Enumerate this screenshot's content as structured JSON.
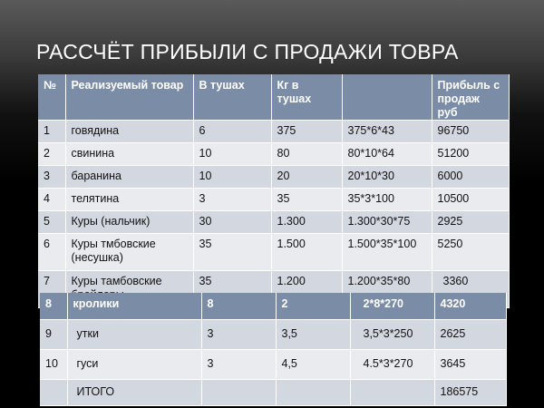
{
  "title": "РАССЧЁТ ПРИБЫЛИ С ПРОДАЖИ ТОВРА",
  "table1": {
    "headers": [
      "№",
      "Реализуемый товар",
      "В тушах",
      "Кг в тушах",
      "",
      "Прибыль с продаж руб"
    ],
    "rows": [
      [
        "1",
        "говядина",
        "6",
        "375",
        "375*6*43",
        "96750"
      ],
      [
        "2",
        "свинина",
        "10",
        "80",
        "80*10*64",
        "51200"
      ],
      [
        "3",
        "баранина",
        "10",
        "20",
        "20*10*30",
        "6000"
      ],
      [
        "4",
        "телятина",
        "3",
        "35",
        "35*3*100",
        "10500"
      ],
      [
        "5",
        "Куры (нальчик)",
        "30",
        "1.300",
        "1.300*30*75",
        "2925"
      ],
      [
        "6",
        "Куры тмбовские (несушка)",
        "35",
        "1.500",
        "1.500*35*100",
        "5250"
      ],
      [
        "7",
        "Куры тамбовские бройлеры",
        "35",
        "1.200",
        "1.200*35*80",
        "3360"
      ]
    ]
  },
  "table2": {
    "header": [
      "8",
      "кролики",
      "8",
      "2",
      "2*8*270",
      "4320"
    ],
    "rows": [
      [
        "9",
        "утки",
        "3",
        "3,5",
        "3,5*3*250",
        "2625"
      ],
      [
        "10",
        "гуси",
        "3",
        "4,5",
        "4.5*3*270",
        "3645"
      ],
      [
        "",
        "ИТОГО",
        "",
        "",
        "",
        "186575"
      ]
    ]
  }
}
